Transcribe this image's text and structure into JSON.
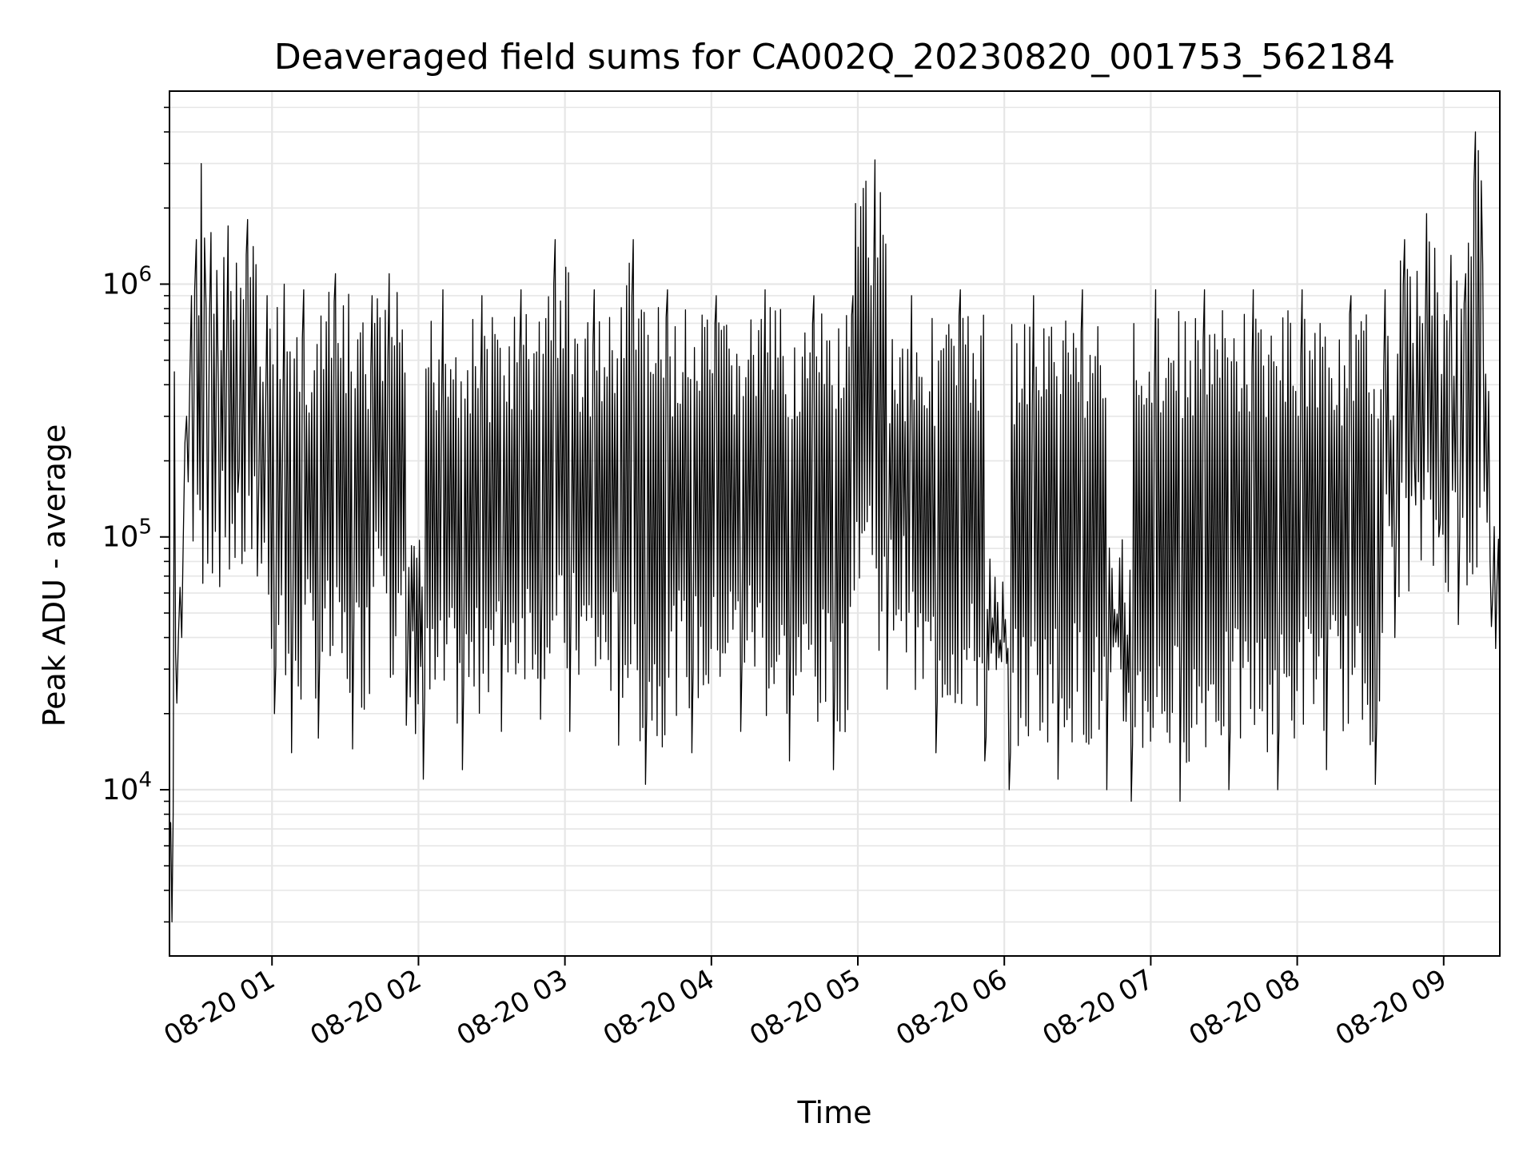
{
  "chart_data": {
    "type": "line",
    "title": "Deaveraged field sums for CA002Q_20230820_001753_562184",
    "xlabel": "Time",
    "ylabel": "Peak ADU - average",
    "x_range": [
      "2023-08-20 00:18",
      "2023-08-20 09:23"
    ],
    "y_scale": "log",
    "ylim": [
      2200,
      5800000
    ],
    "grid": true,
    "line_color": "#000000",
    "grid_color": "#e6e6e6",
    "x_ticks": [
      {
        "time": "2023-08-20 01:00",
        "label": "08-20 01"
      },
      {
        "time": "2023-08-20 02:00",
        "label": "08-20 02"
      },
      {
        "time": "2023-08-20 03:00",
        "label": "08-20 03"
      },
      {
        "time": "2023-08-20 04:00",
        "label": "08-20 04"
      },
      {
        "time": "2023-08-20 05:00",
        "label": "08-20 05"
      },
      {
        "time": "2023-08-20 06:00",
        "label": "08-20 06"
      },
      {
        "time": "2023-08-20 07:00",
        "label": "08-20 07"
      },
      {
        "time": "2023-08-20 08:00",
        "label": "08-20 08"
      },
      {
        "time": "2023-08-20 09:00",
        "label": "08-20 09"
      }
    ],
    "y_ticks": [
      {
        "value": 10000,
        "base": "10",
        "exp": "4"
      },
      {
        "value": 100000,
        "base": "10",
        "exp": "5"
      },
      {
        "value": 1000000,
        "base": "10",
        "exp": "6"
      }
    ],
    "series": [
      {
        "points": [
          [
            "2023-08-20 00:18",
            7500
          ],
          [
            "2023-08-20 00:19",
            3000
          ],
          [
            "2023-08-20 00:20",
            450000
          ],
          [
            "2023-08-20 00:21",
            22000
          ],
          [
            "2023-08-20 00:23",
            40000
          ],
          [
            "2023-08-20 00:25",
            300000
          ],
          [
            "2023-08-20 00:27",
            900000
          ],
          [
            "2023-08-20 00:29",
            1500000
          ],
          [
            "2023-08-20 00:30",
            750000
          ],
          [
            "2023-08-20 00:31",
            3000000
          ],
          [
            "2023-08-20 00:33",
            800000
          ],
          [
            "2023-08-20 00:35",
            1600000
          ],
          [
            "2023-08-20 00:38",
            400000
          ],
          [
            "2023-08-20 00:42",
            1700000
          ],
          [
            "2023-08-20 00:46",
            150000
          ],
          [
            "2023-08-20 00:50",
            1800000
          ],
          [
            "2023-08-20 00:54",
            70000
          ],
          [
            "2023-08-20 00:58",
            900000
          ],
          [
            "2023-08-20 01:01",
            20000
          ],
          [
            "2023-08-20 01:05",
            1000000
          ],
          [
            "2023-08-20 01:08",
            14000
          ],
          [
            "2023-08-20 01:13",
            950000
          ],
          [
            "2023-08-20 01:19",
            16000
          ],
          [
            "2023-08-20 01:26",
            1100000
          ],
          [
            "2023-08-20 01:33",
            14500
          ],
          [
            "2023-08-20 01:41",
            900000
          ],
          [
            "2023-08-20 01:48",
            1100000
          ],
          [
            "2023-08-20 01:55",
            18000
          ],
          [
            "2023-08-20 02:02",
            11000
          ],
          [
            "2023-08-20 02:10",
            950000
          ],
          [
            "2023-08-20 02:18",
            12000
          ],
          [
            "2023-08-20 02:26",
            900000
          ],
          [
            "2023-08-20 02:34",
            17000
          ],
          [
            "2023-08-20 02:42",
            950000
          ],
          [
            "2023-08-20 02:50",
            19000
          ],
          [
            "2023-08-20 02:56",
            1500000
          ],
          [
            "2023-08-20 03:02",
            17000
          ],
          [
            "2023-08-20 03:12",
            950000
          ],
          [
            "2023-08-20 03:22",
            15000
          ],
          [
            "2023-08-20 03:28",
            1500000
          ],
          [
            "2023-08-20 03:33",
            10500
          ],
          [
            "2023-08-20 03:42",
            950000
          ],
          [
            "2023-08-20 03:52",
            14000
          ],
          [
            "2023-08-20 04:02",
            900000
          ],
          [
            "2023-08-20 04:12",
            17000
          ],
          [
            "2023-08-20 04:22",
            950000
          ],
          [
            "2023-08-20 04:32",
            13000
          ],
          [
            "2023-08-20 04:42",
            900000
          ],
          [
            "2023-08-20 04:50",
            12000
          ],
          [
            "2023-08-20 04:58",
            900000
          ],
          [
            "2023-08-20 05:07",
            3100000
          ],
          [
            "2023-08-20 05:12",
            25000
          ],
          [
            "2023-08-20 05:22",
            900000
          ],
          [
            "2023-08-20 05:32",
            14000
          ],
          [
            "2023-08-20 05:42",
            950000
          ],
          [
            "2023-08-20 05:52",
            13000
          ],
          [
            "2023-08-20 06:02",
            10000
          ],
          [
            "2023-08-20 06:12",
            900000
          ],
          [
            "2023-08-20 06:22",
            11000
          ],
          [
            "2023-08-20 06:32",
            950000
          ],
          [
            "2023-08-20 06:42",
            10000
          ],
          [
            "2023-08-20 06:52",
            9000
          ],
          [
            "2023-08-20 07:02",
            950000
          ],
          [
            "2023-08-20 07:12",
            9000
          ],
          [
            "2023-08-20 07:22",
            950000
          ],
          [
            "2023-08-20 07:32",
            10000
          ],
          [
            "2023-08-20 07:42",
            950000
          ],
          [
            "2023-08-20 07:52",
            10000
          ],
          [
            "2023-08-20 08:02",
            950000
          ],
          [
            "2023-08-20 08:12",
            12000
          ],
          [
            "2023-08-20 08:22",
            900000
          ],
          [
            "2023-08-20 08:32",
            10500
          ],
          [
            "2023-08-20 08:36",
            950000
          ],
          [
            "2023-08-20 08:40",
            40000
          ],
          [
            "2023-08-20 08:44",
            1500000
          ],
          [
            "2023-08-20 08:48",
            200000
          ],
          [
            "2023-08-20 08:53",
            1900000
          ],
          [
            "2023-08-20 08:58",
            100000
          ],
          [
            "2023-08-20 09:03",
            1300000
          ],
          [
            "2023-08-20 09:06",
            45000
          ],
          [
            "2023-08-20 09:09",
            1100000
          ],
          [
            "2023-08-20 09:13",
            4000000
          ],
          [
            "2023-08-20 09:16",
            1200000
          ],
          [
            "2023-08-20 09:19",
            80000
          ],
          [
            "2023-08-20 09:23",
            28000
          ]
        ]
      }
    ]
  }
}
